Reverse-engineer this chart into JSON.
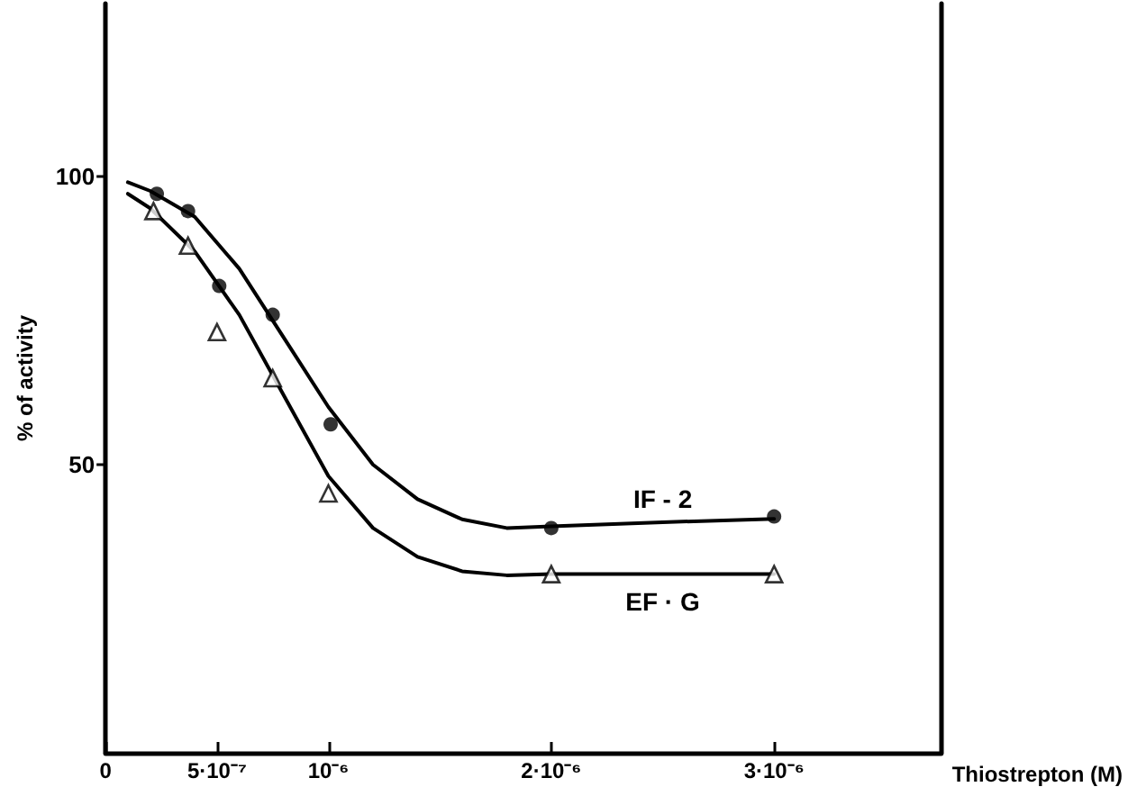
{
  "chart_data": {
    "type": "scatter",
    "xlabel": "Thiostrepton (M)",
    "ylabel": "% of activity",
    "xlim": [
      0,
      3.75e-06
    ],
    "ylim": [
      0,
      130
    ],
    "xticks": [
      {
        "value": 0,
        "label": "0"
      },
      {
        "value": 5e-07,
        "label": "5·10⁻⁷"
      },
      {
        "value": 1e-06,
        "label": "10⁻⁶"
      },
      {
        "value": 2e-06,
        "label": "2·10⁻⁶"
      },
      {
        "value": 3e-06,
        "label": "3·10⁻⁶"
      }
    ],
    "yticks": [
      50,
      100
    ],
    "grid": false,
    "series": [
      {
        "marker": "circle",
        "color": "#000000",
        "x": [
          2.3e-07,
          3.7e-07,
          5.1e-07,
          7.5e-07,
          1.01e-06,
          2e-06,
          3e-06
        ],
        "values": [
          97,
          94,
          81,
          76,
          57,
          39,
          41
        ]
      },
      {
        "marker": "triangle",
        "color": "#000000",
        "x": [
          2.15e-07,
          3.7e-07,
          5e-07,
          7.5e-07,
          1e-06,
          2e-06,
          3e-06
        ],
        "values": [
          94,
          88,
          73,
          65,
          45,
          31,
          31
        ]
      },
      {
        "type": "line",
        "name": "IF - 2",
        "marker": "none",
        "color": "#000000",
        "x": [
          1e-07,
          2e-07,
          4e-07,
          6e-07,
          8e-07,
          1e-06,
          1.2e-06,
          1.4e-06,
          1.6e-06,
          1.8e-06,
          2e-06,
          2.5e-06,
          3e-06
        ],
        "values": [
          99,
          97.5,
          93,
          84,
          72,
          60,
          50,
          44,
          40.5,
          39,
          39.3,
          40,
          40.6
        ]
      },
      {
        "type": "line",
        "name": "EF · G",
        "marker": "none",
        "color": "#000000",
        "x": [
          1e-07,
          2e-07,
          4e-07,
          6e-07,
          8e-07,
          1e-06,
          1.2e-06,
          1.4e-06,
          1.6e-06,
          1.8e-06,
          2e-06,
          2.5e-06,
          3e-06
        ],
        "values": [
          97,
          94.5,
          87,
          76,
          62,
          48,
          39,
          34,
          31.5,
          30.8,
          31,
          31,
          31
        ]
      }
    ]
  }
}
